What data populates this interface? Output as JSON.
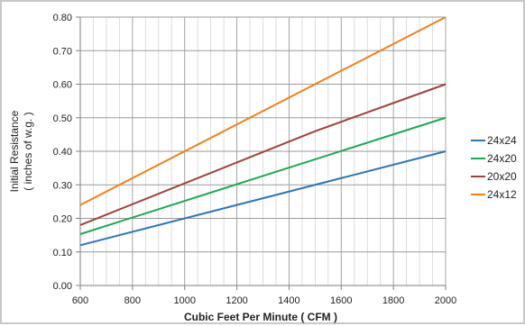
{
  "chart_data": {
    "type": "line",
    "xlabel": "Cubic Feet Per Minute ( CFM )",
    "ylabel": [
      "Initial Resistance",
      "( inches of w.g. )"
    ],
    "xlim": [
      600,
      2000
    ],
    "ylim": [
      0,
      0.8
    ],
    "x_ticks": [
      600,
      800,
      1000,
      1200,
      1400,
      1600,
      1800,
      2000
    ],
    "y_ticks": [
      "0.00",
      "0.10",
      "0.20",
      "0.30",
      "0.40",
      "0.50",
      "0.60",
      "0.70",
      "0.80"
    ],
    "legend_position": "right",
    "grid": "major and minor",
    "series": [
      {
        "name": "24x24",
        "color": "#2e75b6",
        "x": [
          600,
          2000
        ],
        "y": [
          0.12,
          0.4
        ]
      },
      {
        "name": "24x20",
        "color": "#1fa755",
        "x": [
          600,
          2000
        ],
        "y": [
          0.153,
          0.5
        ]
      },
      {
        "name": "20x20",
        "color": "#a0413c",
        "x": [
          600,
          1500,
          2000
        ],
        "y": [
          0.18,
          0.46,
          0.6
        ]
      },
      {
        "name": "24x12",
        "color": "#f08020",
        "x": [
          600,
          2000
        ],
        "y": [
          0.24,
          0.8
        ]
      }
    ]
  }
}
